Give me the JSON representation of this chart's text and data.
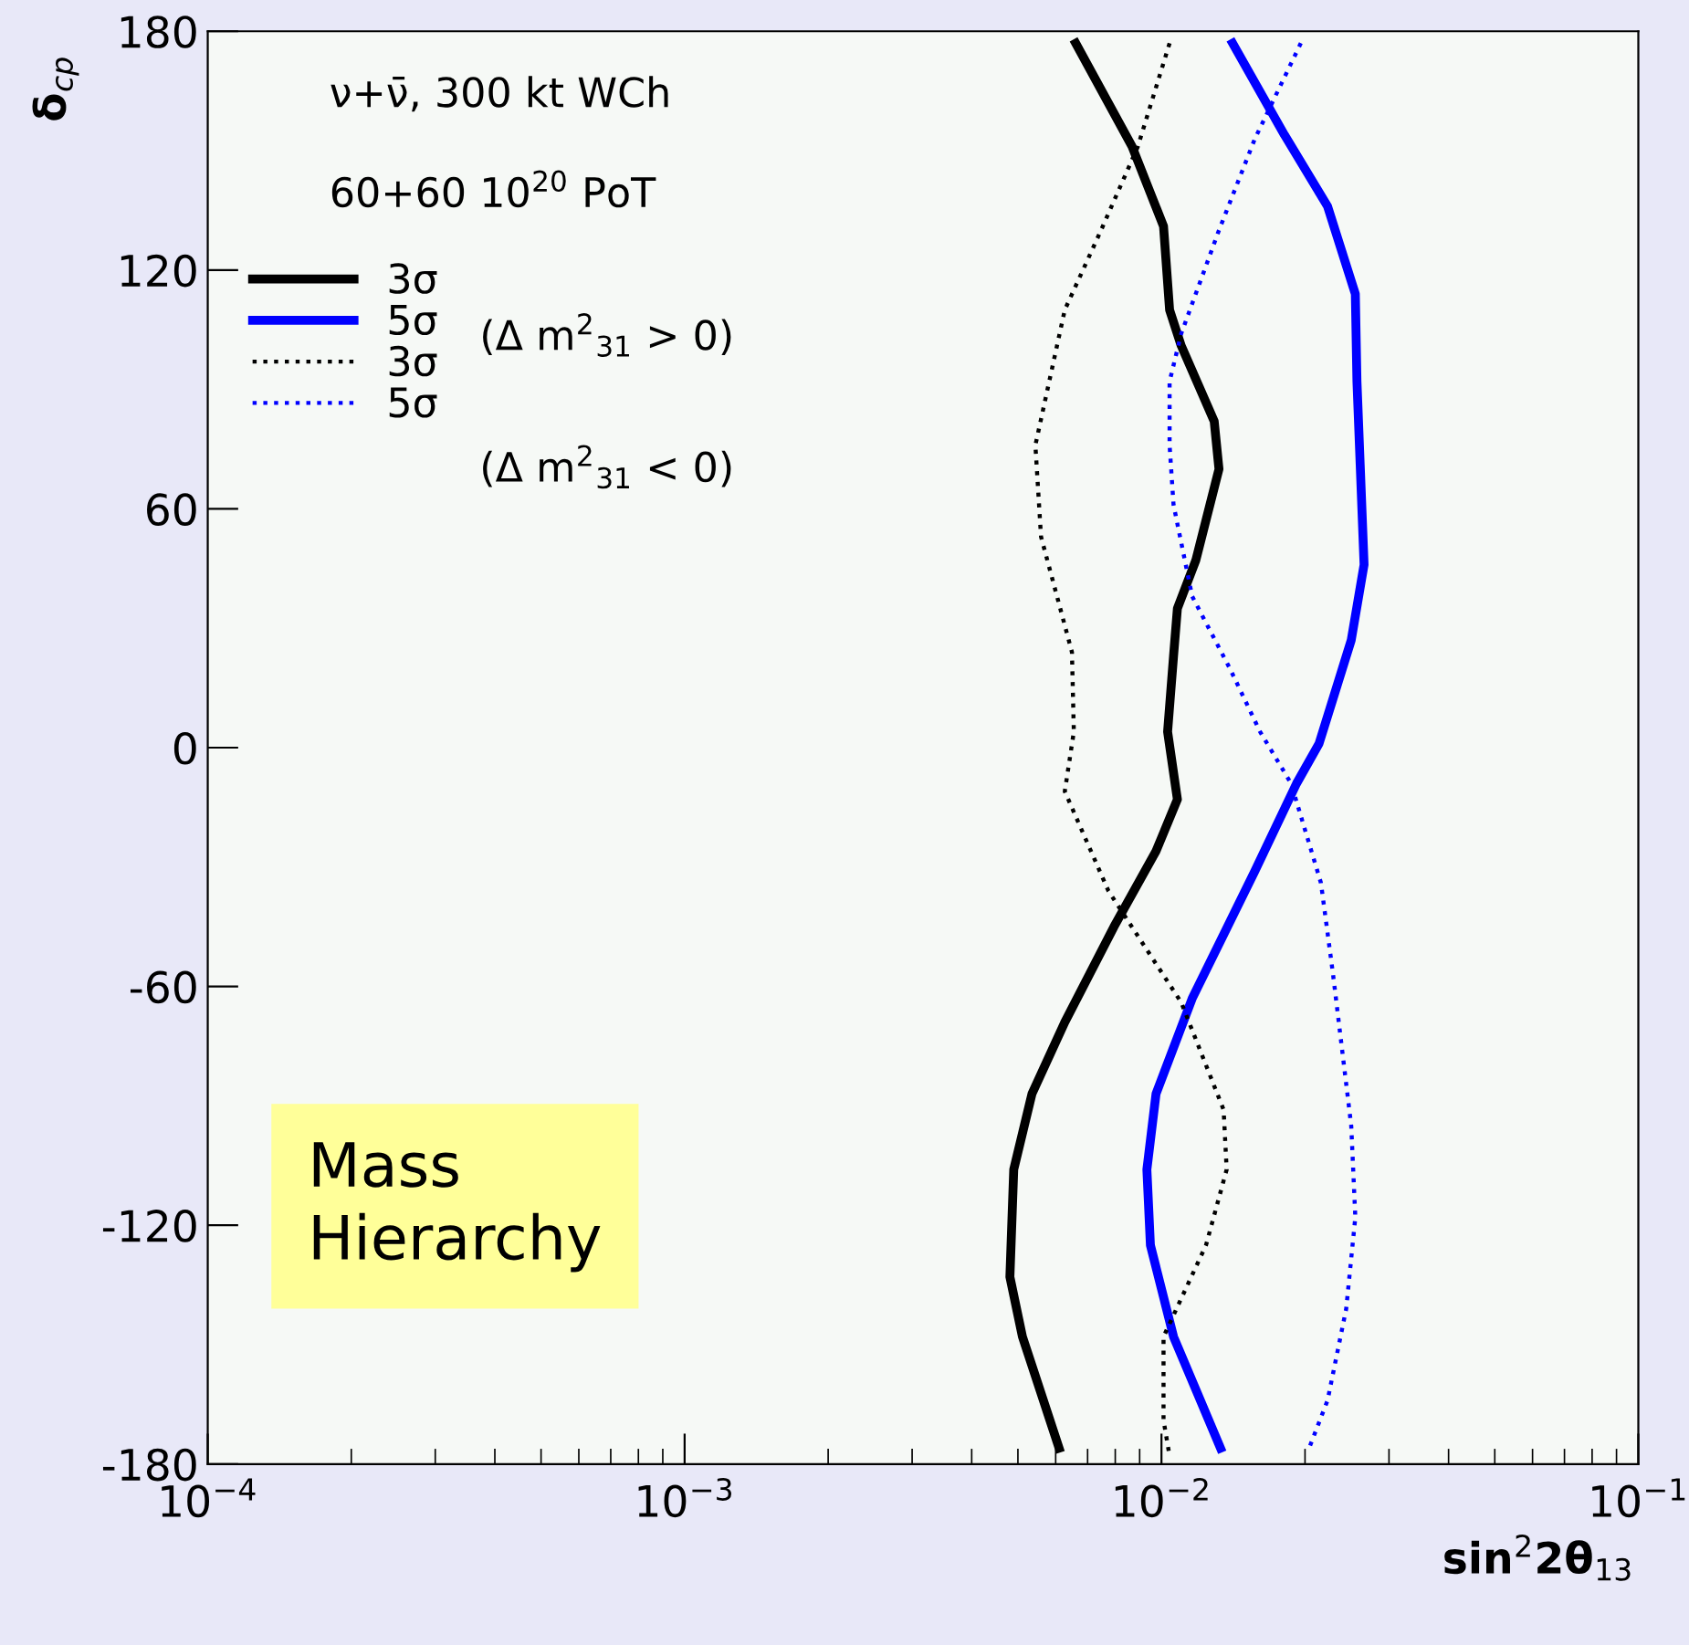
{
  "chart_data": {
    "type": "line",
    "xlabel": "sin$^{2}$2θ$_{13}$",
    "ylabel": "δ$_{cp}$",
    "log": "x",
    "xlim": [
      0.0001,
      0.1
    ],
    "ylim": [
      -180,
      180
    ],
    "xticks": [
      {
        "value": 0.0001,
        "label": "10$^{−4}$"
      },
      {
        "value": 0.001,
        "label": "10$^{−3}$"
      },
      {
        "value": 0.01,
        "label": "10$^{−2}$"
      },
      {
        "value": 0.1,
        "label": "10$^{−1}$"
      }
    ],
    "yticks": [
      -180,
      -120,
      -60,
      0,
      60,
      120,
      180
    ],
    "grid": false,
    "legend": "top left",
    "marker": "none",
    "annotations": [
      "ν+ν̄, 300 kt WCh",
      "60+60 10$^{20}$ PoT",
      "(Δ m$^{2}$$_{31}$ > 0)",
      "(Δ m$^{2}$$_{31}$ < 0)",
      "Mass\nHierarchy"
    ],
    "series": [
      {
        "name": "3σ",
        "color": "#000000",
        "line_style": "solid",
        "x": [
          0.00661,
          0.00868,
          0.0101,
          0.0104,
          0.011,
          0.0129,
          0.0132,
          0.0118,
          0.0108,
          0.0106,
          0.0103,
          0.0108,
          0.00974,
          0.00795,
          0.00627,
          0.00535,
          0.0049,
          0.00481,
          0.00511,
          0.0061
        ],
        "values": [
          177,
          151,
          131,
          110,
          101,
          82,
          70,
          47,
          35,
          23,
          4,
          -13,
          -26,
          -45,
          -69,
          -87,
          -106,
          -133,
          -148,
          -176
        ]
      },
      {
        "name": "5σ",
        "color": "#0000ff",
        "line_style": "solid",
        "x": [
          0.0141,
          0.0181,
          0.0223,
          0.0255,
          0.0257,
          0.0266,
          0.025,
          0.0214,
          0.0192,
          0.0157,
          0.0116,
          0.00974,
          0.00932,
          0.00948,
          0.0106,
          0.0133
        ],
        "values": [
          177,
          154,
          136,
          114,
          92,
          46,
          27,
          1,
          -9,
          -31,
          -63,
          -87,
          -106,
          -125,
          -148,
          -176
        ]
      },
      {
        "name": "3σ",
        "color": "#000000",
        "line_style": "dotted",
        "x": [
          0.0104,
          0.00892,
          0.00747,
          0.00627,
          0.00544,
          0.00559,
          0.00649,
          0.00655,
          0.00627,
          0.00774,
          0.011,
          0.0135,
          0.0137,
          0.0124,
          0.0101,
          0.0101,
          0.0104
        ],
        "values": [
          177,
          151,
          130,
          110,
          76,
          53,
          24,
          4,
          -11,
          -36,
          -64,
          -91,
          -106,
          -125,
          -148,
          -169,
          -178
        ]
      },
      {
        "name": "5σ",
        "color": "#0000ff",
        "line_style": "dotted",
        "x": [
          0.0196,
          0.0157,
          0.0132,
          0.011,
          0.0104,
          0.0104,
          0.0106,
          0.0116,
          0.0139,
          0.0161,
          0.0187,
          0.0216,
          0.0229,
          0.025,
          0.0255,
          0.0244,
          0.0223,
          0.0204
        ],
        "values": [
          177,
          153,
          130,
          104,
          92,
          76,
          61,
          38,
          20,
          4,
          -9,
          -34,
          -57,
          -95,
          -118,
          -141,
          -164,
          -176
        ]
      }
    ]
  }
}
